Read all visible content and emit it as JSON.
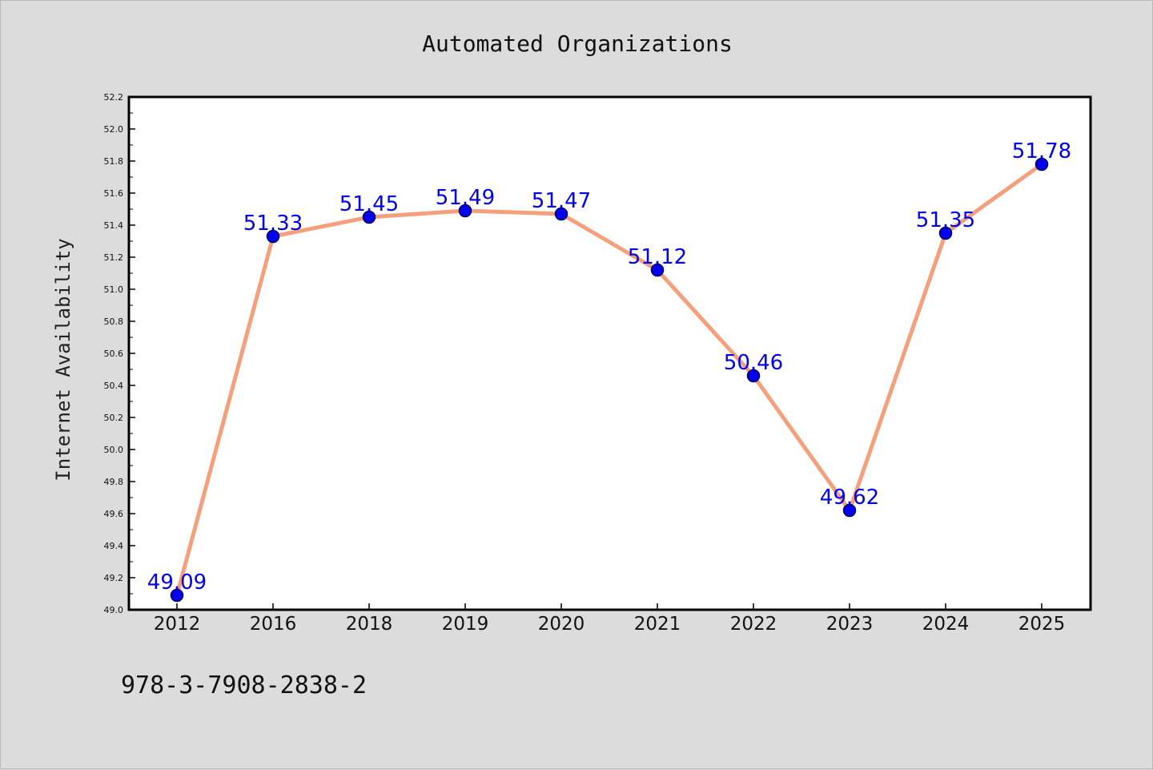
{
  "chart_data": {
    "type": "line",
    "title": "Automated Organizations",
    "xlabel": "",
    "ylabel": "Internet Availability",
    "categories": [
      "2012",
      "2016",
      "2018",
      "2019",
      "2020",
      "2021",
      "2022",
      "2023",
      "2024",
      "2025"
    ],
    "series": [
      {
        "values": [
          49.09,
          51.33,
          51.45,
          51.49,
          51.47,
          51.12,
          50.46,
          49.62,
          51.35,
          51.78
        ],
        "data_labels": [
          "49.09",
          "51.33",
          "51.45",
          "51.49",
          "51.47",
          "51.12",
          "50.46",
          "49.62",
          "51.35",
          "51.78"
        ]
      }
    ],
    "ylim": [
      49.0,
      52.2
    ],
    "yticks": [
      "49.0",
      "49.2",
      "49.4",
      "49.6",
      "49.8",
      "50.0",
      "50.2",
      "50.4",
      "50.6",
      "50.8",
      "51.0",
      "51.2",
      "51.4",
      "51.6",
      "51.8",
      "52.0",
      "52.2"
    ],
    "grid": false,
    "legend": "none"
  },
  "footer_text": "978-3-7908-2838-2",
  "colors": {
    "figure_background": "#dcdcdc",
    "plot_background": "#ffffff",
    "line": "#f5a07c",
    "marker_fill": "#0000ee",
    "marker_edge": "#00005a",
    "data_label": "#0000ee"
  }
}
